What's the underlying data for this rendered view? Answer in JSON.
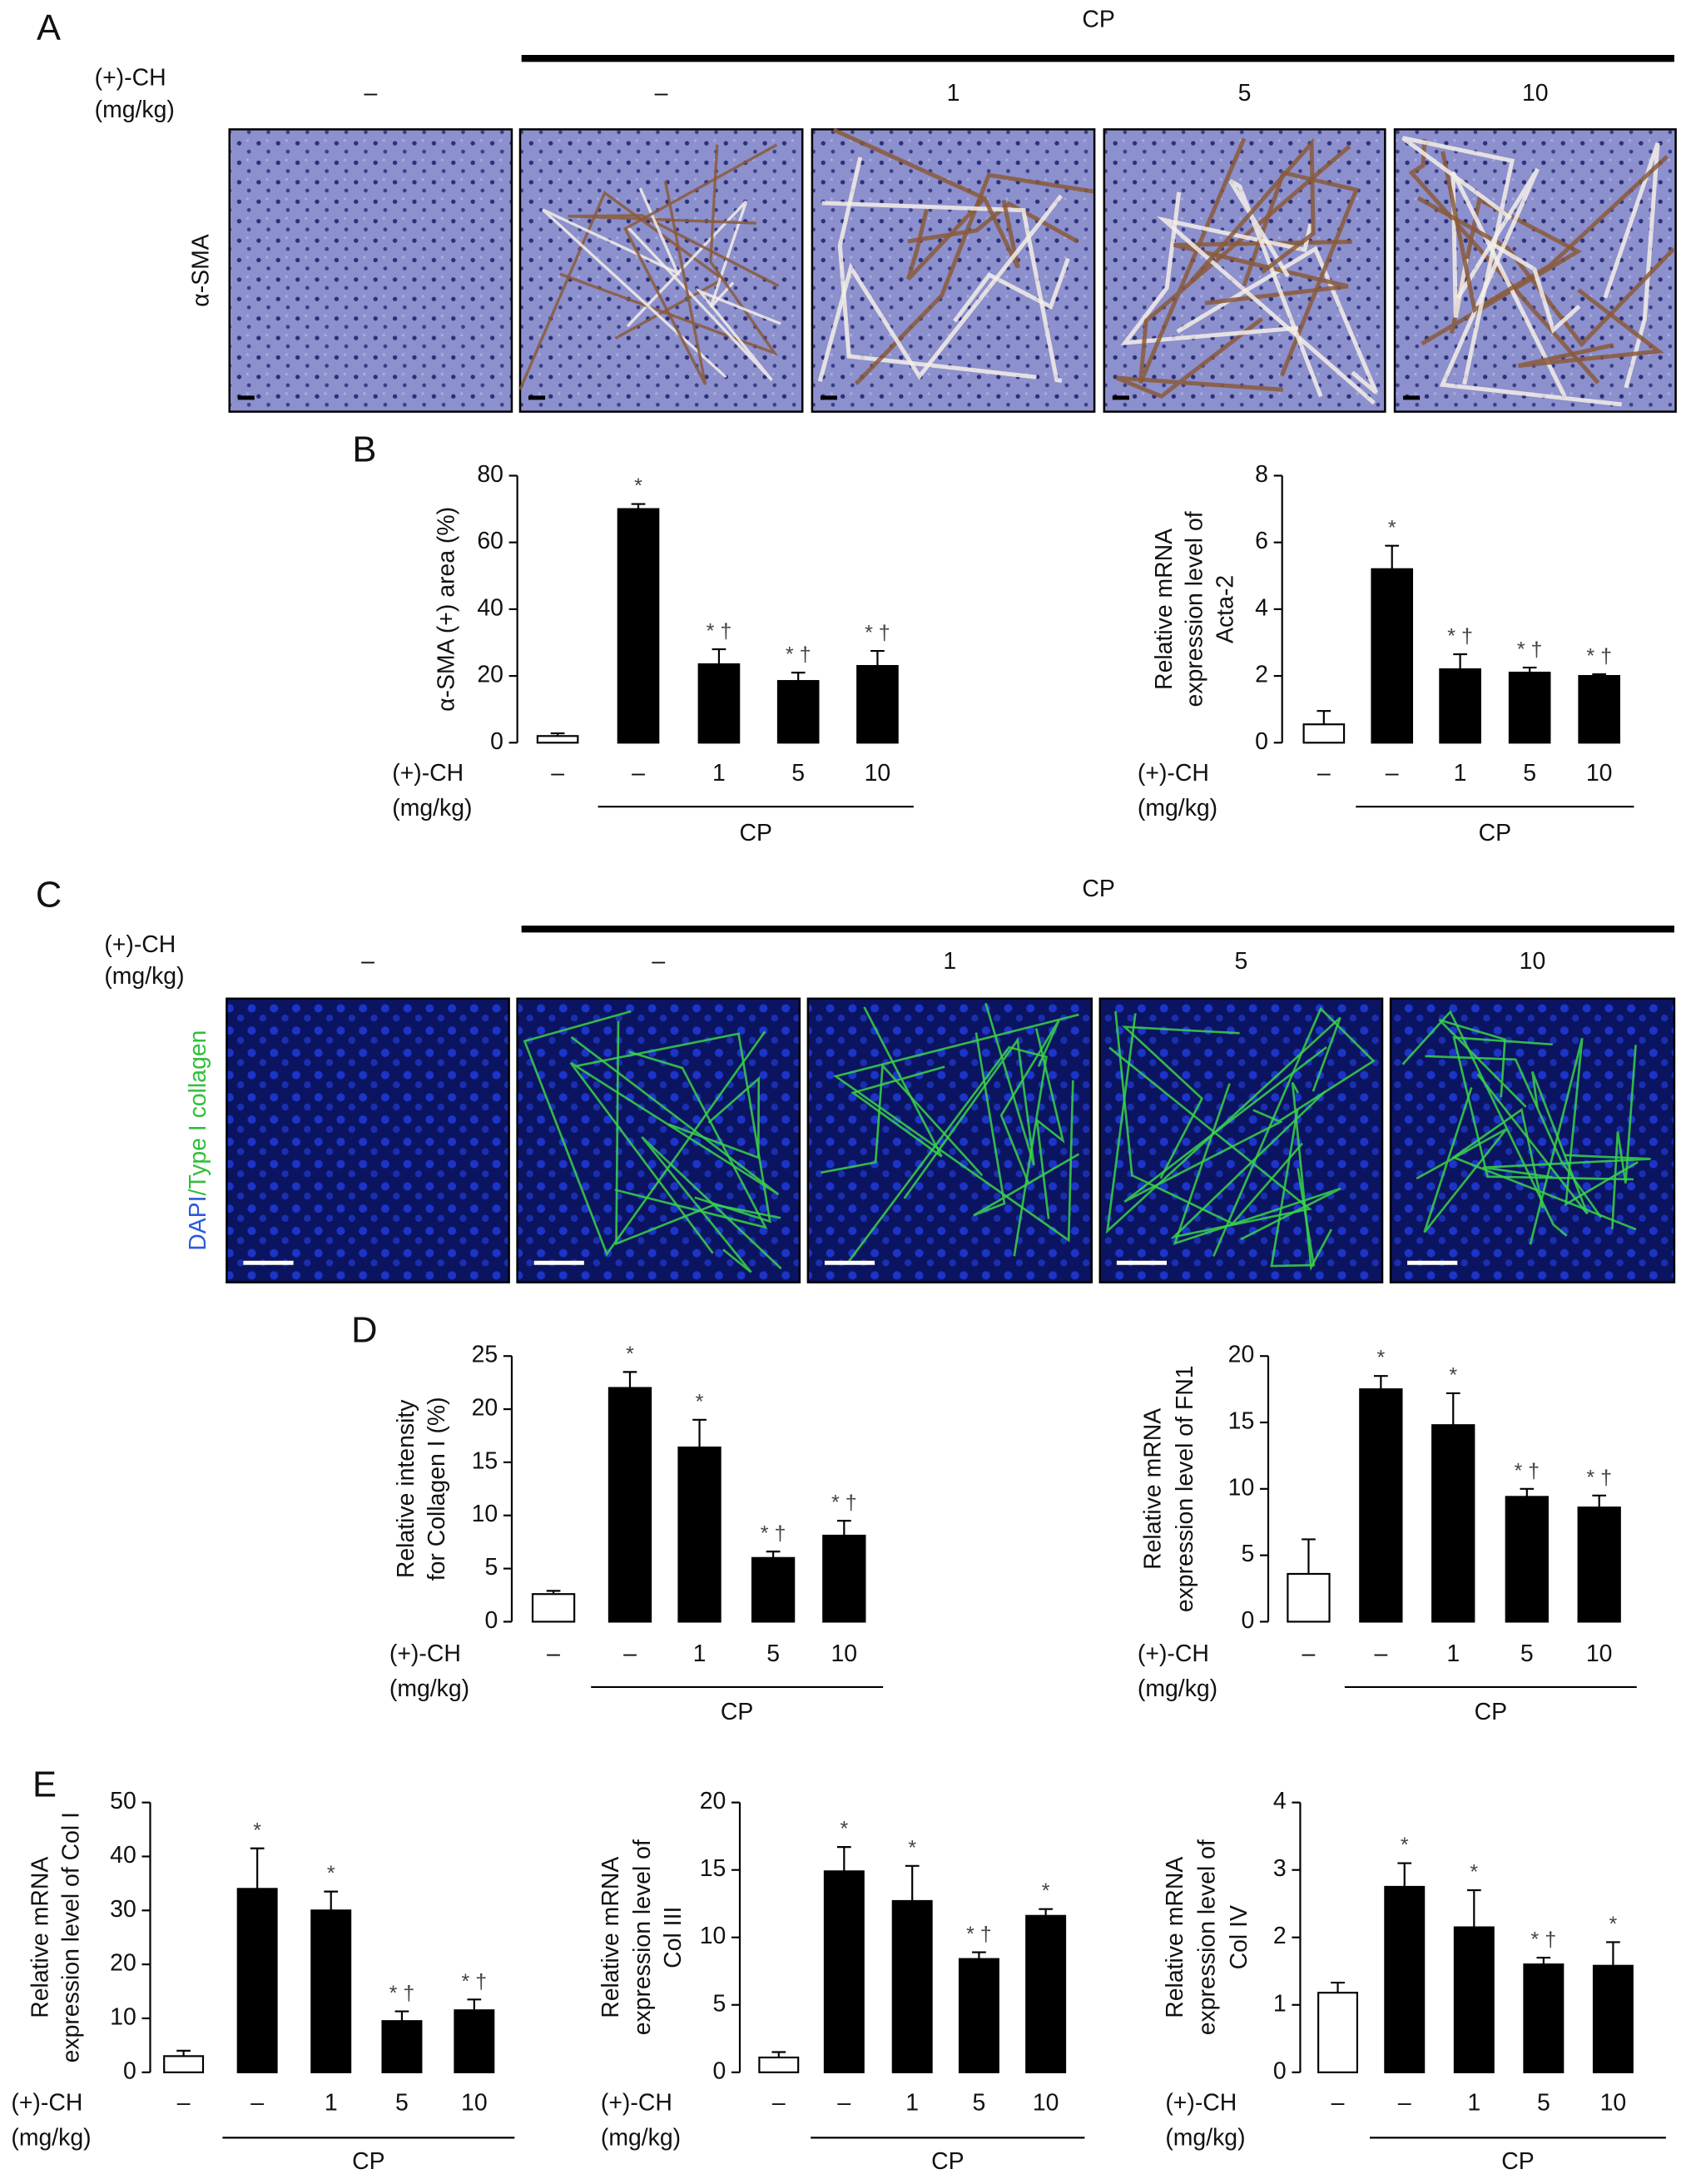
{
  "panel_labels": [
    "A",
    "B",
    "C",
    "D",
    "E"
  ],
  "image_panels": [
    {
      "group_label": "CP",
      "x_label": [
        "(+)-CH",
        "(mg/kg)"
      ],
      "columns": [
        "–",
        "–",
        "1",
        "5",
        "10"
      ],
      "row_label": [
        "α-SMA"
      ]
    },
    {
      "group_label": "CP",
      "x_label": [
        "(+)-CH",
        "(mg/kg)"
      ],
      "columns": [
        "–",
        "–",
        "1",
        "5",
        "10"
      ],
      "row_label": [
        "DAPI",
        "/Type I collagen"
      ]
    }
  ],
  "chart_data": [
    {
      "type": "bar",
      "ylabel": [
        "α-SMA (+) area (%)"
      ],
      "categories": [
        "–",
        "–",
        "1",
        "5",
        "10"
      ],
      "x_label": [
        "(+)-CH",
        "(mg/kg)"
      ],
      "group_label": "CP",
      "values": [
        2,
        70,
        23.5,
        18.5,
        23
      ],
      "errors": [
        0.8,
        1.5,
        4.5,
        2.5,
        4.5
      ],
      "annotations": [
        null,
        "*",
        "* †",
        "* †",
        "* †"
      ],
      "colors": [
        "#ffffff",
        "#000000",
        "#000000",
        "#000000",
        "#000000"
      ],
      "ylim": [
        0,
        80
      ],
      "yticks": [
        0,
        20,
        40,
        60,
        80
      ]
    },
    {
      "type": "bar",
      "ylabel": [
        "Relative mRNA",
        "expression level of",
        "Acta-2"
      ],
      "categories": [
        "–",
        "–",
        "1",
        "5",
        "10"
      ],
      "x_label": [
        "(+)-CH",
        "(mg/kg)"
      ],
      "group_label": "CP",
      "values": [
        0.55,
        5.2,
        2.2,
        2.1,
        2.0
      ],
      "errors": [
        0.4,
        0.7,
        0.45,
        0.15,
        0.05
      ],
      "annotations": [
        null,
        "*",
        "* †",
        "* †",
        "* †"
      ],
      "colors": [
        "#ffffff",
        "#000000",
        "#000000",
        "#000000",
        "#000000"
      ],
      "ylim": [
        0,
        8
      ],
      "yticks": [
        0,
        2,
        4,
        6,
        8
      ]
    },
    {
      "type": "bar",
      "ylabel": [
        "Relative intensity",
        "for Collagen I (%)"
      ],
      "categories": [
        "–",
        "–",
        "1",
        "5",
        "10"
      ],
      "x_label": [
        "(+)-CH",
        "(mg/kg)"
      ],
      "group_label": "CP",
      "values": [
        2.6,
        22,
        16.4,
        6,
        8.1
      ],
      "errors": [
        0.3,
        1.5,
        2.6,
        0.6,
        1.4
      ],
      "annotations": [
        null,
        "*",
        "*",
        "* †",
        "* †"
      ],
      "colors": [
        "#ffffff",
        "#000000",
        "#000000",
        "#000000",
        "#000000"
      ],
      "ylim": [
        0,
        25
      ],
      "yticks": [
        0,
        5,
        10,
        15,
        20,
        25
      ]
    },
    {
      "type": "bar",
      "ylabel": [
        "Relative mRNA",
        "expression level of FN1"
      ],
      "categories": [
        "–",
        "–",
        "1",
        "5",
        "10"
      ],
      "x_label": [
        "(+)-CH",
        "(mg/kg)"
      ],
      "group_label": "CP",
      "values": [
        3.6,
        17.5,
        14.8,
        9.4,
        8.6
      ],
      "errors": [
        2.6,
        1,
        2.4,
        0.6,
        0.9
      ],
      "annotations": [
        null,
        "*",
        "*",
        "* †",
        "* †"
      ],
      "colors": [
        "#ffffff",
        "#000000",
        "#000000",
        "#000000",
        "#000000"
      ],
      "ylim": [
        0,
        20
      ],
      "yticks": [
        0,
        5,
        10,
        15,
        20
      ]
    },
    {
      "type": "bar",
      "ylabel": [
        "Relative mRNA",
        "expression level of Col I"
      ],
      "categories": [
        "–",
        "–",
        "1",
        "5",
        "10"
      ],
      "x_label": [
        "(+)-CH",
        "(mg/kg)"
      ],
      "group_label": "CP",
      "values": [
        3,
        34,
        30,
        9.5,
        11.5
      ],
      "errors": [
        1,
        7.5,
        3.5,
        1.8,
        2
      ],
      "annotations": [
        null,
        "*",
        "*",
        "* †",
        "* †"
      ],
      "colors": [
        "#ffffff",
        "#000000",
        "#000000",
        "#000000",
        "#000000"
      ],
      "ylim": [
        0,
        50
      ],
      "yticks": [
        0,
        10,
        20,
        30,
        40,
        50
      ]
    },
    {
      "type": "bar",
      "ylabel": [
        "Relative mRNA",
        "expression level of",
        "Col III"
      ],
      "categories": [
        "–",
        "–",
        "1",
        "5",
        "10"
      ],
      "x_label": [
        "(+)-CH",
        "(mg/kg)"
      ],
      "group_label": "CP",
      "values": [
        1.1,
        14.9,
        12.7,
        8.4,
        11.6
      ],
      "errors": [
        0.4,
        1.8,
        2.6,
        0.5,
        0.5
      ],
      "annotations": [
        null,
        "*",
        "*",
        "* †",
        "*"
      ],
      "colors": [
        "#ffffff",
        "#000000",
        "#000000",
        "#000000",
        "#000000"
      ],
      "ylim": [
        0,
        20
      ],
      "yticks": [
        0,
        5,
        10,
        15,
        20
      ]
    },
    {
      "type": "bar",
      "ylabel": [
        "Relative mRNA",
        "expression level of",
        "Col IV"
      ],
      "categories": [
        "–",
        "–",
        "1",
        "5",
        "10"
      ],
      "x_label": [
        "(+)-CH",
        "(mg/kg)"
      ],
      "group_label": "CP",
      "values": [
        1.18,
        2.75,
        2.15,
        1.6,
        1.58
      ],
      "errors": [
        0.15,
        0.35,
        0.55,
        0.1,
        0.35
      ],
      "annotations": [
        null,
        "*",
        "*",
        "* †",
        "*"
      ],
      "colors": [
        "#ffffff",
        "#000000",
        "#000000",
        "#000000",
        "#000000"
      ],
      "ylim": [
        0,
        4
      ],
      "yticks": [
        0,
        1,
        2,
        3,
        4
      ]
    }
  ]
}
